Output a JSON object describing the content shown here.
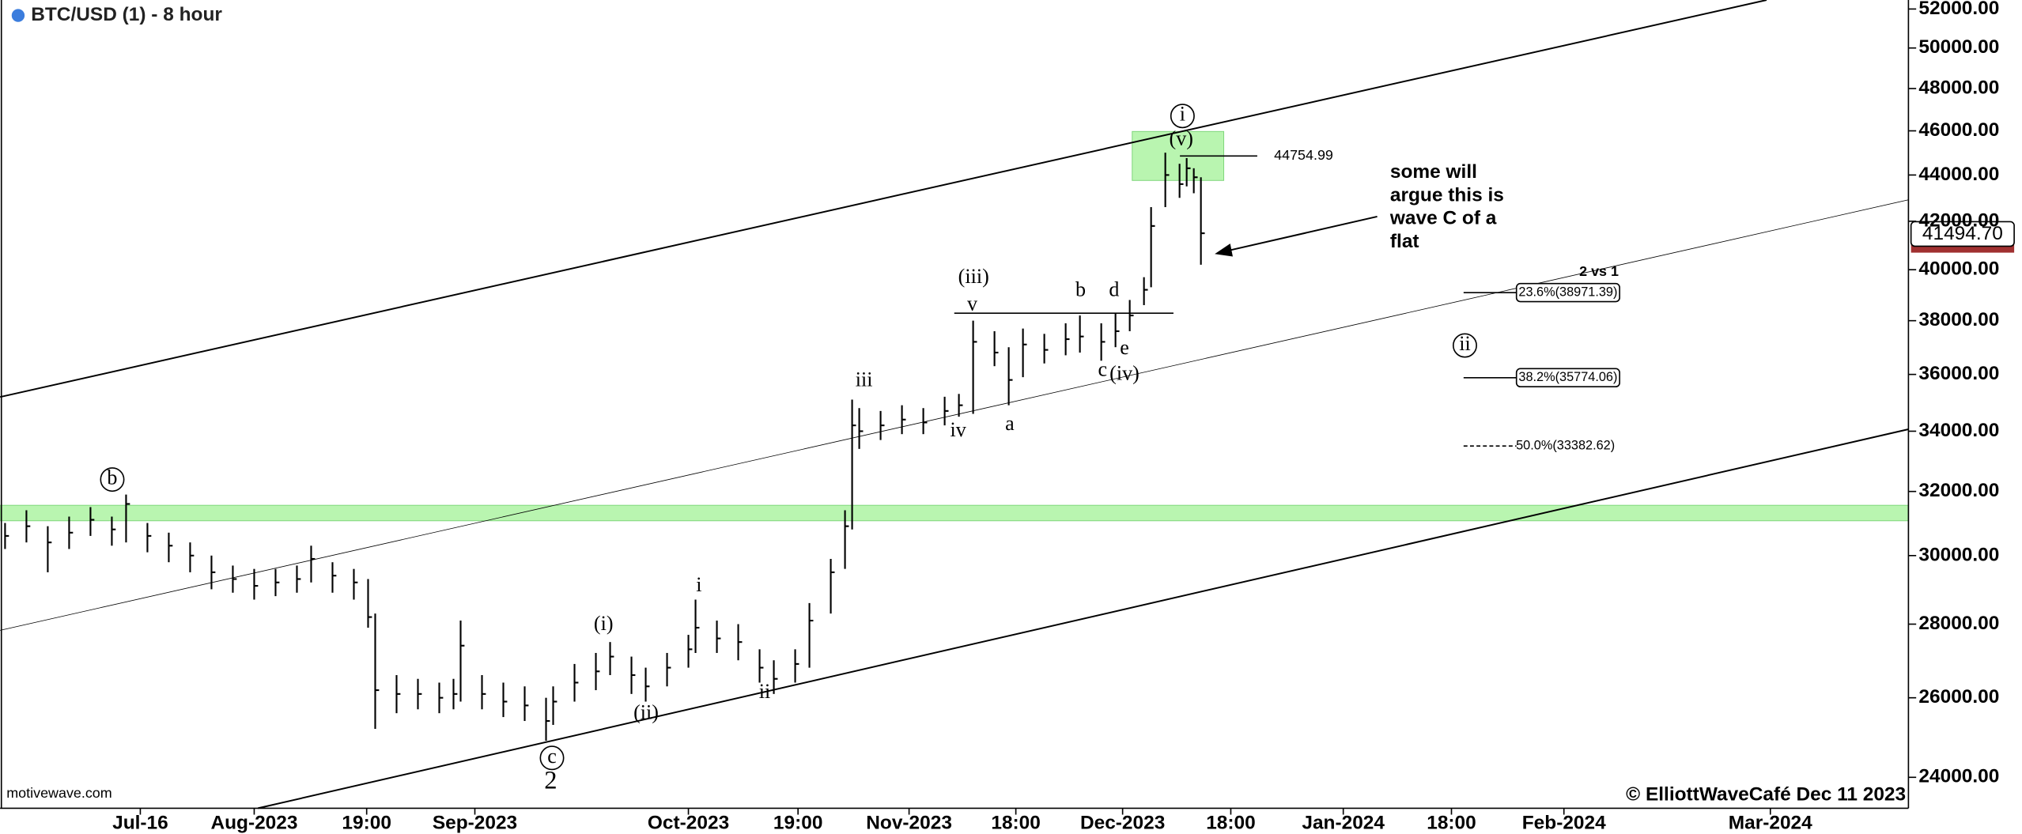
{
  "chart_data": {
    "type": "ohlc",
    "title": "BTC/USD (1) - 8 hour",
    "log_scale": true,
    "bar_color": "#000000",
    "x": [
      -4,
      -1,
      2,
      5,
      8,
      11,
      13,
      16,
      19,
      22,
      25,
      28,
      31,
      34,
      37,
      39,
      42,
      45,
      47,
      48,
      51,
      54,
      57,
      59,
      60,
      63,
      66,
      69,
      72,
      73,
      76,
      79,
      81,
      84,
      86,
      89,
      92,
      93,
      96,
      99,
      102,
      104,
      107,
      109,
      112,
      114,
      115,
      116,
      119,
      122,
      125,
      128,
      130,
      132,
      135,
      137,
      139,
      142,
      145,
      147,
      150,
      152,
      154,
      156,
      157,
      159,
      161,
      162,
      163,
      164
    ],
    "high": [
      31000,
      31400,
      30900,
      31200,
      31500,
      31200,
      31900,
      31000,
      30700,
      30400,
      30000,
      29700,
      29600,
      29600,
      29700,
      30300,
      29800,
      29600,
      29300,
      28300,
      26600,
      26500,
      26400,
      26500,
      28100,
      26600,
      26400,
      26300,
      26000,
      26300,
      26900,
      27200,
      27500,
      27100,
      26800,
      27200,
      27700,
      28700,
      28100,
      28000,
      27300,
      27000,
      27300,
      28600,
      29900,
      31400,
      35100,
      34800,
      34700,
      34900,
      34800,
      35200,
      35300,
      38000,
      37600,
      37000,
      37700,
      37500,
      37900,
      38200,
      37900,
      38300,
      38800,
      39700,
      42600,
      45000,
      44500,
      44754.99,
      44300,
      43900
    ],
    "low": [
      30200,
      30400,
      29500,
      30200,
      30600,
      30300,
      30400,
      30100,
      29800,
      29500,
      29000,
      28900,
      28700,
      28800,
      28900,
      29200,
      28900,
      28700,
      27900,
      25200,
      25600,
      25700,
      25600,
      25700,
      25900,
      25700,
      25500,
      25400,
      24900,
      25300,
      25900,
      26200,
      26600,
      26100,
      25900,
      26300,
      26800,
      27200,
      27200,
      27000,
      26400,
      26100,
      26400,
      26800,
      28300,
      29600,
      30800,
      33400,
      33700,
      33900,
      33900,
      34200,
      34500,
      34600,
      36300,
      34900,
      35900,
      36400,
      36700,
      36800,
      36500,
      37000,
      37600,
      38600,
      39300,
      42600,
      43000,
      43500,
      43200,
      40200
    ],
    "close": [
      30600,
      30900,
      30400,
      30700,
      31100,
      30800,
      31600,
      30600,
      30300,
      30000,
      29500,
      29300,
      29100,
      29200,
      29300,
      29900,
      29400,
      29200,
      28200,
      26200,
      26100,
      26100,
      26000,
      26100,
      27400,
      26100,
      25900,
      25800,
      25400,
      25900,
      26400,
      26700,
      27100,
      26600,
      26300,
      26800,
      27300,
      27900,
      27600,
      27500,
      26800,
      26500,
      26900,
      28100,
      29500,
      30900,
      34200,
      34000,
      34200,
      34400,
      34300,
      34700,
      34900,
      37200,
      36800,
      35800,
      37100,
      36900,
      37300,
      37400,
      37200,
      37600,
      38200,
      39200,
      41800,
      44000,
      43600,
      44300,
      43900,
      41494.7
    ],
    "xlim": [
      -4.7,
      263.4
    ],
    "ylim": [
      23265,
      52474
    ],
    "xticks": [
      {
        "value": 15,
        "label": "Jul-16"
      },
      {
        "value": 31,
        "label": "Aug-2023"
      },
      {
        "value": 46.8,
        "label": "19:00"
      },
      {
        "value": 62,
        "label": "Sep-2023"
      },
      {
        "value": 92,
        "label": "Oct-2023"
      },
      {
        "value": 107.4,
        "label": "19:00"
      },
      {
        "value": 123,
        "label": "Nov-2023"
      },
      {
        "value": 138,
        "label": "18:00"
      },
      {
        "value": 153,
        "label": "Dec-2023"
      },
      {
        "value": 168.2,
        "label": "18:00"
      },
      {
        "value": 184,
        "label": "Jan-2024"
      },
      {
        "value": 199.2,
        "label": "18:00"
      },
      {
        "value": 215,
        "label": "Feb-2024"
      },
      {
        "value": 244,
        "label": "Mar-2024"
      }
    ],
    "yticks": [
      {
        "value": 52000,
        "label": "52000.00"
      },
      {
        "value": 50000,
        "label": "50000.00"
      },
      {
        "value": 48000,
        "label": "48000.00"
      },
      {
        "value": 46000,
        "label": "46000.00"
      },
      {
        "value": 44000,
        "label": "44000.00"
      },
      {
        "value": 42000,
        "label": "42000.00"
      },
      {
        "value": 40000,
        "label": "40000.00"
      },
      {
        "value": 38000,
        "label": "38000.00"
      },
      {
        "value": 36000,
        "label": "36000.00"
      },
      {
        "value": 34000,
        "label": "34000.00"
      },
      {
        "value": 32000,
        "label": "32000.00"
      },
      {
        "value": 30000,
        "label": "30000.00"
      },
      {
        "value": 28000,
        "label": "28000.00"
      },
      {
        "value": 26000,
        "label": "26000.00"
      },
      {
        "value": 24000,
        "label": "24000.00"
      }
    ],
    "last_price_label": "41494.70",
    "high_label": "44754.99",
    "wave_labels": [
      "b",
      "c",
      "2",
      "(i)",
      "(ii)",
      "i",
      "ii",
      "iii",
      "iv",
      "v",
      "(iii)",
      "a",
      "b",
      "c",
      "d",
      "e",
      "(iv)",
      "(v)",
      "i",
      "ii",
      "2 vs 1"
    ],
    "note": [
      "some will",
      "argue this is",
      "wave C of a",
      "flat"
    ],
    "fib_labels": [
      "23.6%(38971.39)",
      "38.2%(35774.06)",
      "50.0%(33382.62)"
    ],
    "source": "motivewave.com",
    "copyright": "© ElliottWaveCafé Dec 11 2023"
  }
}
